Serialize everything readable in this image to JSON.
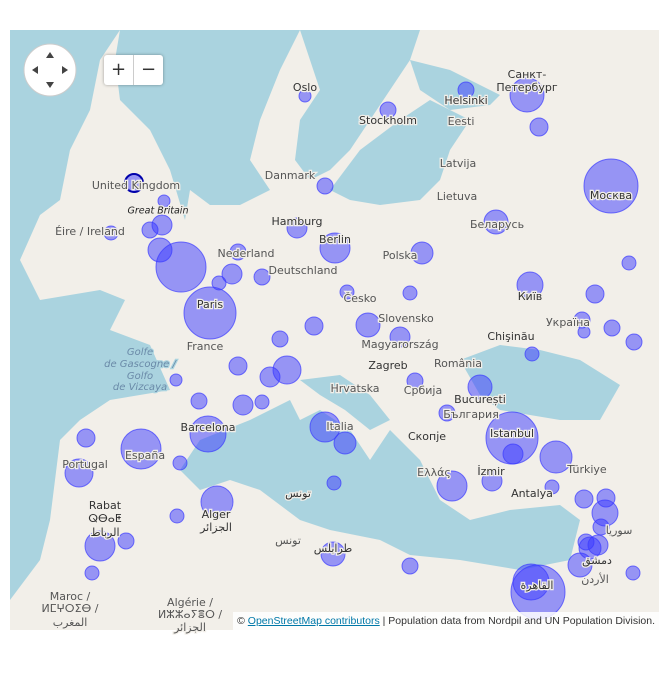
{
  "controls": {
    "zoom_in": "+",
    "zoom_out": "−"
  },
  "attribution": {
    "prefix": "©",
    "link": "OpenStreetMap contributors",
    "text": "| Population data from Nordpil and UN Population Division."
  },
  "map": {
    "labels": [
      "Oslo",
      "Stockholm",
      "Helsinki",
      "Санкт-",
      "Петербург",
      "Eesti",
      "Latvija",
      "Danmark",
      "United Kingdom",
      "Great Britain",
      "Lietuva",
      "Москва",
      "Éire / Ireland",
      "Hamburg",
      "Беларусь",
      "Berlin",
      "Nederland",
      "Polska",
      "Deutschland",
      "Česko",
      "Київ",
      "Paris",
      "Slovensko",
      "Україна",
      "Chişinău",
      "Magyarország",
      "France",
      "Golfe",
      "de Gascogne /",
      "Golfo",
      "de Vizcaya",
      "Zagreb",
      "România",
      "Hrvatska",
      "București",
      "Србија",
      "България",
      "Italia",
      "Barcelona",
      "Istanbul",
      "Скопје",
      "España",
      "Portugal",
      "Ελλάς",
      "İzmir",
      "Türkiye",
      "Antalya",
      "Rabat",
      "ⵕⴱⴰⵟ",
      "الرباط",
      "Alger",
      "الجزائر",
      "تونس",
      "تونس",
      "سوريا",
      "طرابلس",
      "دمشق",
      "الأردن",
      "القاهرة",
      "Maroc /",
      "ⵍⵎⵖⵔⵉⴱ /",
      "المغرب",
      "Algérie /",
      "ⵍⵣⵣⴰⵢⴻⵔ /",
      "الجزائر"
    ]
  }
}
